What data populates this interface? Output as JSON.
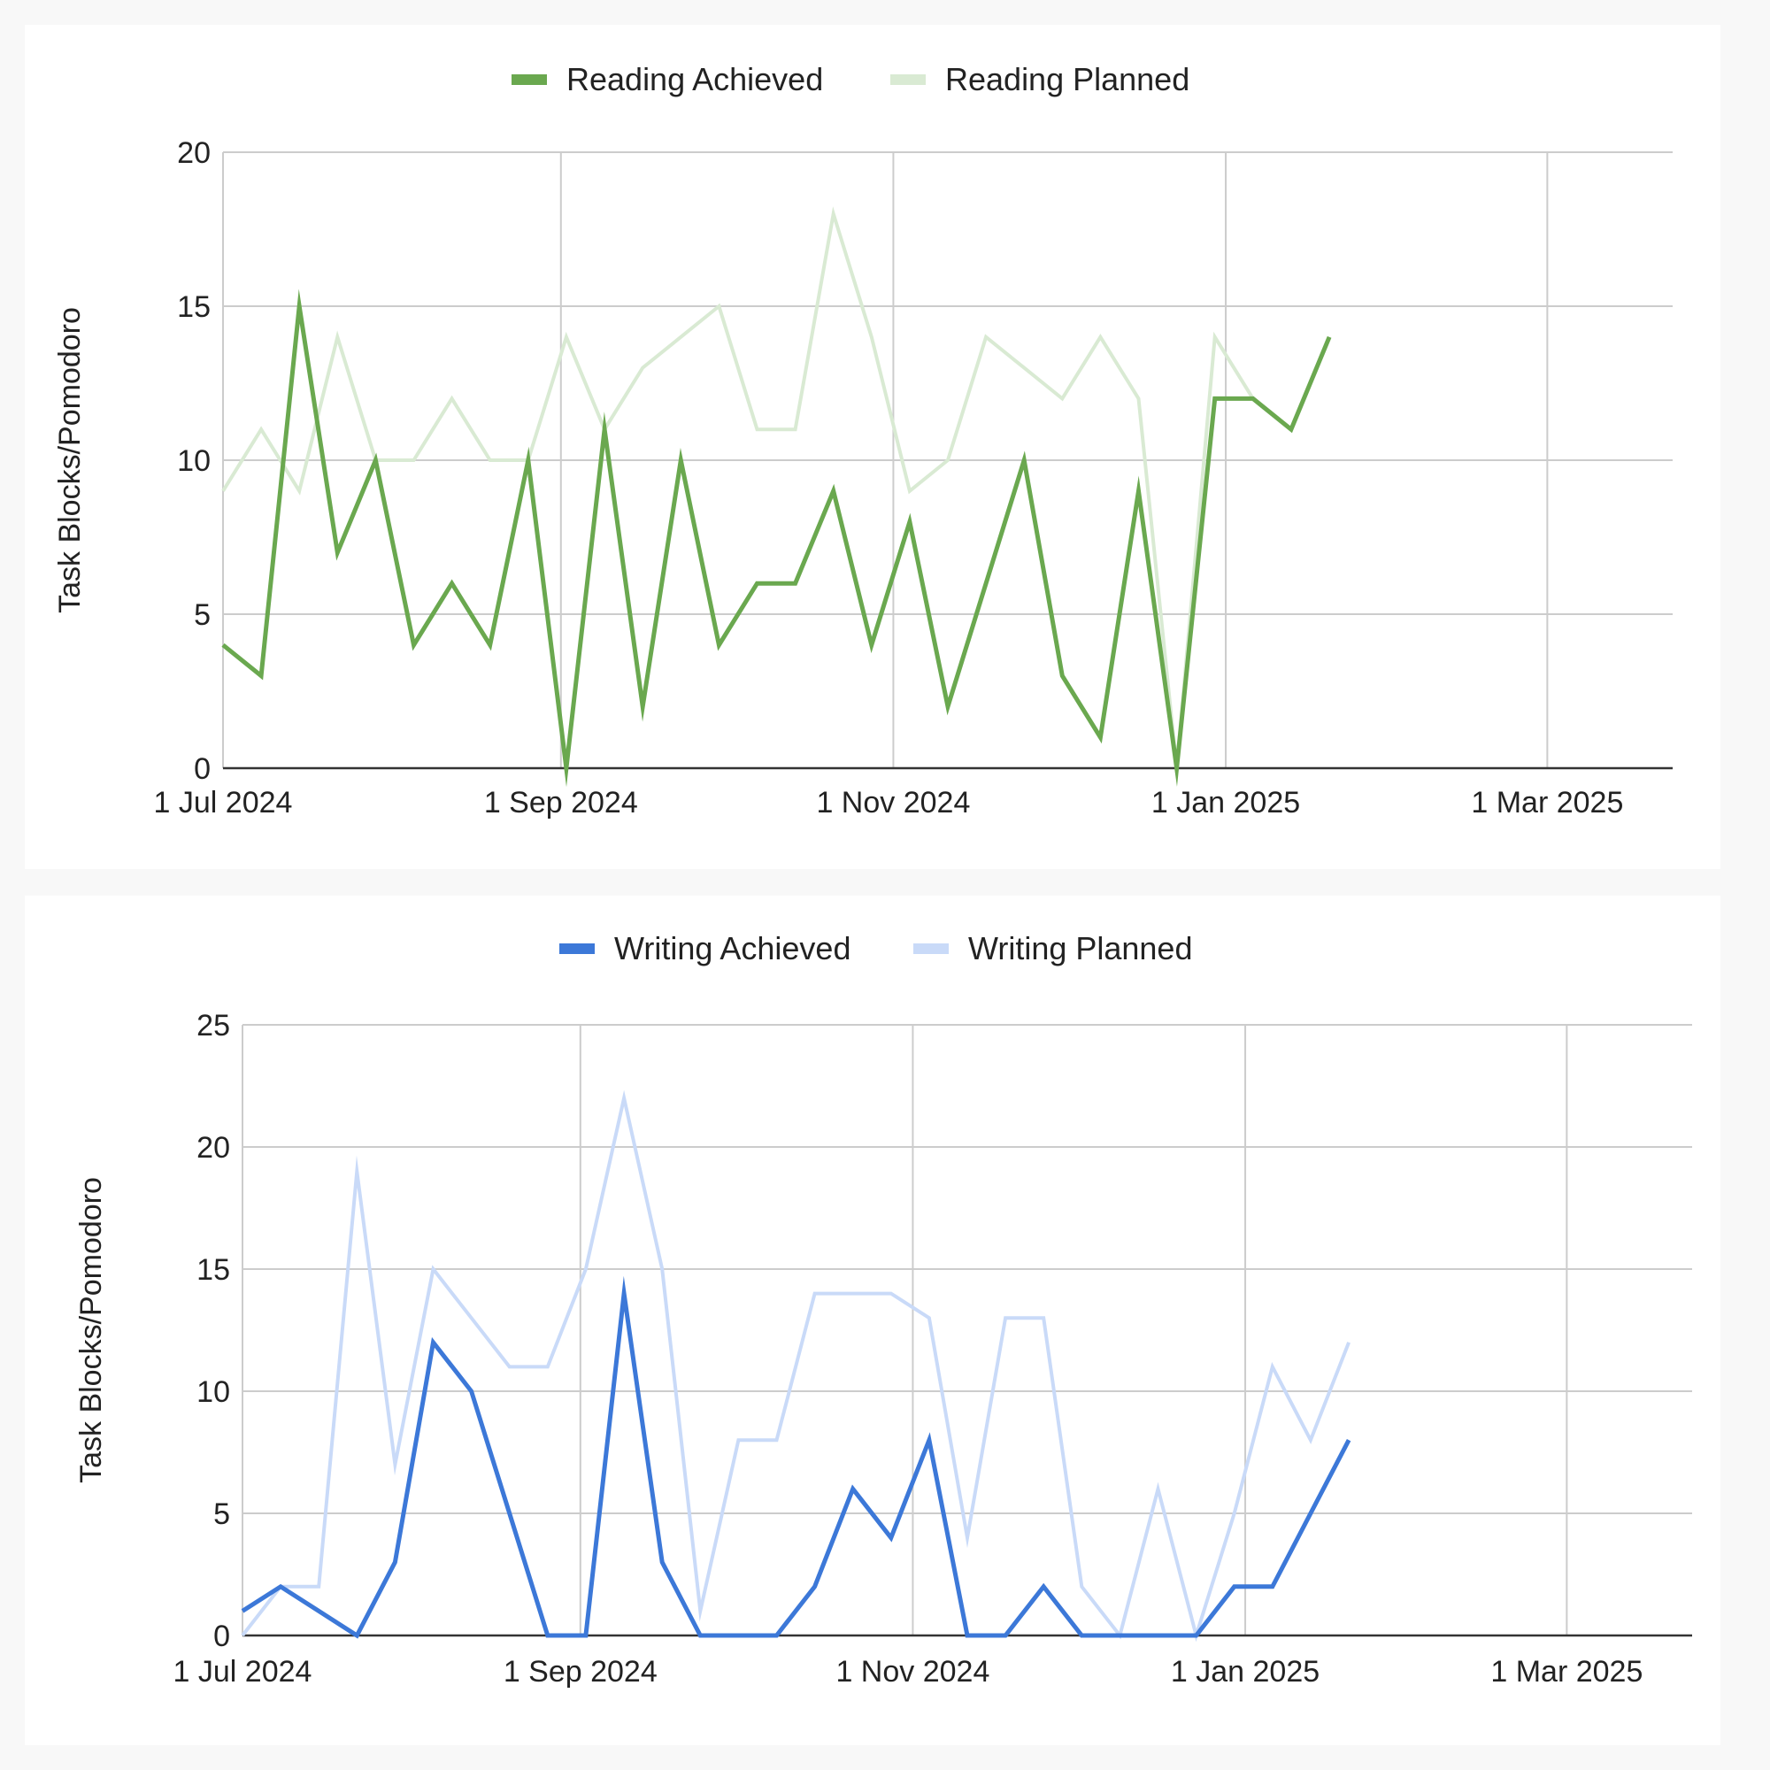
{
  "charts": [
    {
      "type": "line",
      "ylabel": "Task Blocks/Pomodoro",
      "ylim": [
        0,
        20
      ],
      "yticks": [
        "0",
        "5",
        "10",
        "15",
        "20"
      ],
      "xticks": [
        "1 Jul 2024",
        "1 Sep 2024",
        "1 Nov 2024",
        "1 Jan 2025",
        "1 Mar 2025"
      ],
      "xlim": [
        "2024-07-01",
        "2025-03-24"
      ],
      "legend_position": "top-center",
      "grid": true,
      "series": [
        {
          "name": "Reading Achieved",
          "color": "#6aa84f",
          "x": [
            "2024-07-01",
            "2024-07-08",
            "2024-07-15",
            "2024-07-22",
            "2024-07-29",
            "2024-08-05",
            "2024-08-12",
            "2024-08-19",
            "2024-08-26",
            "2024-09-02",
            "2024-09-09",
            "2024-09-16",
            "2024-09-23",
            "2024-09-30",
            "2024-10-07",
            "2024-10-14",
            "2024-10-21",
            "2024-10-28",
            "2024-11-04",
            "2024-11-11",
            "2024-11-18",
            "2024-11-25",
            "2024-12-02",
            "2024-12-09",
            "2024-12-16",
            "2024-12-23",
            "2024-12-30",
            "2025-01-06",
            "2025-01-13",
            "2025-01-20"
          ],
          "values": [
            4,
            3,
            15,
            7,
            10,
            4,
            6,
            4,
            10,
            0,
            11,
            2,
            10,
            4,
            6,
            6,
            9,
            4,
            8,
            2,
            6,
            10,
            3,
            1,
            9,
            0,
            12,
            12,
            11,
            14
          ]
        },
        {
          "name": "Reading Planned",
          "color": "#d9ead3",
          "x": [
            "2024-07-01",
            "2024-07-08",
            "2024-07-15",
            "2024-07-22",
            "2024-07-29",
            "2024-08-05",
            "2024-08-12",
            "2024-08-19",
            "2024-08-26",
            "2024-09-02",
            "2024-09-09",
            "2024-09-16",
            "2024-09-23",
            "2024-09-30",
            "2024-10-07",
            "2024-10-14",
            "2024-10-21",
            "2024-10-28",
            "2024-11-04",
            "2024-11-11",
            "2024-11-18",
            "2024-11-25",
            "2024-12-02",
            "2024-12-09",
            "2024-12-16",
            "2024-12-23",
            "2024-12-30",
            "2025-01-06"
          ],
          "values": [
            9,
            11,
            9,
            14,
            10,
            10,
            12,
            10,
            10,
            14,
            11,
            13,
            14,
            15,
            11,
            11,
            18,
            14,
            9,
            10,
            14,
            13,
            12,
            14,
            12,
            0,
            14,
            12
          ]
        }
      ]
    },
    {
      "type": "line",
      "ylabel": "Task Blocks/Pomodoro",
      "ylim": [
        0,
        25
      ],
      "yticks": [
        "0",
        "5",
        "10",
        "15",
        "20",
        "25"
      ],
      "xticks": [
        "1 Jul 2024",
        "1 Sep 2024",
        "1 Nov 2024",
        "1 Jan 2025",
        "1 Mar 2025"
      ],
      "xlim": [
        "2024-07-01",
        "2025-03-24"
      ],
      "legend_position": "top-center",
      "grid": true,
      "series": [
        {
          "name": "Writing Achieved",
          "color": "#3c78d8",
          "x": [
            "2024-07-01",
            "2024-07-08",
            "2024-07-15",
            "2024-07-22",
            "2024-07-29",
            "2024-08-05",
            "2024-08-12",
            "2024-08-19",
            "2024-08-26",
            "2024-09-02",
            "2024-09-09",
            "2024-09-16",
            "2024-09-23",
            "2024-09-30",
            "2024-10-07",
            "2024-10-14",
            "2024-10-21",
            "2024-10-28",
            "2024-11-04",
            "2024-11-11",
            "2024-11-18",
            "2024-11-25",
            "2024-12-02",
            "2024-12-09",
            "2024-12-16",
            "2024-12-23",
            "2024-12-30",
            "2025-01-06",
            "2025-01-13",
            "2025-01-20"
          ],
          "values": [
            1,
            2,
            1,
            0,
            3,
            12,
            10,
            5,
            0,
            0,
            14,
            3,
            0,
            0,
            0,
            2,
            6,
            4,
            8,
            0,
            0,
            2,
            0,
            0,
            0,
            0,
            2,
            2,
            5,
            8
          ]
        },
        {
          "name": "Writing Planned",
          "color": "#c9daf8",
          "x": [
            "2024-07-01",
            "2024-07-08",
            "2024-07-15",
            "2024-07-22",
            "2024-07-29",
            "2024-08-05",
            "2024-08-12",
            "2024-08-19",
            "2024-08-26",
            "2024-09-02",
            "2024-09-09",
            "2024-09-16",
            "2024-09-23",
            "2024-09-30",
            "2024-10-07",
            "2024-10-14",
            "2024-10-21",
            "2024-10-28",
            "2024-11-04",
            "2024-11-11",
            "2024-11-18",
            "2024-11-25",
            "2024-12-02",
            "2024-12-09",
            "2024-12-16",
            "2024-12-23",
            "2024-12-30",
            "2025-01-06",
            "2025-01-13",
            "2025-01-20"
          ],
          "values": [
            0,
            2,
            2,
            19,
            7,
            15,
            13,
            11,
            11,
            15,
            22,
            15,
            1,
            8,
            8,
            14,
            14,
            14,
            13,
            4,
            13,
            13,
            2,
            0,
            6,
            0,
            5,
            11,
            8,
            12
          ]
        }
      ]
    }
  ]
}
